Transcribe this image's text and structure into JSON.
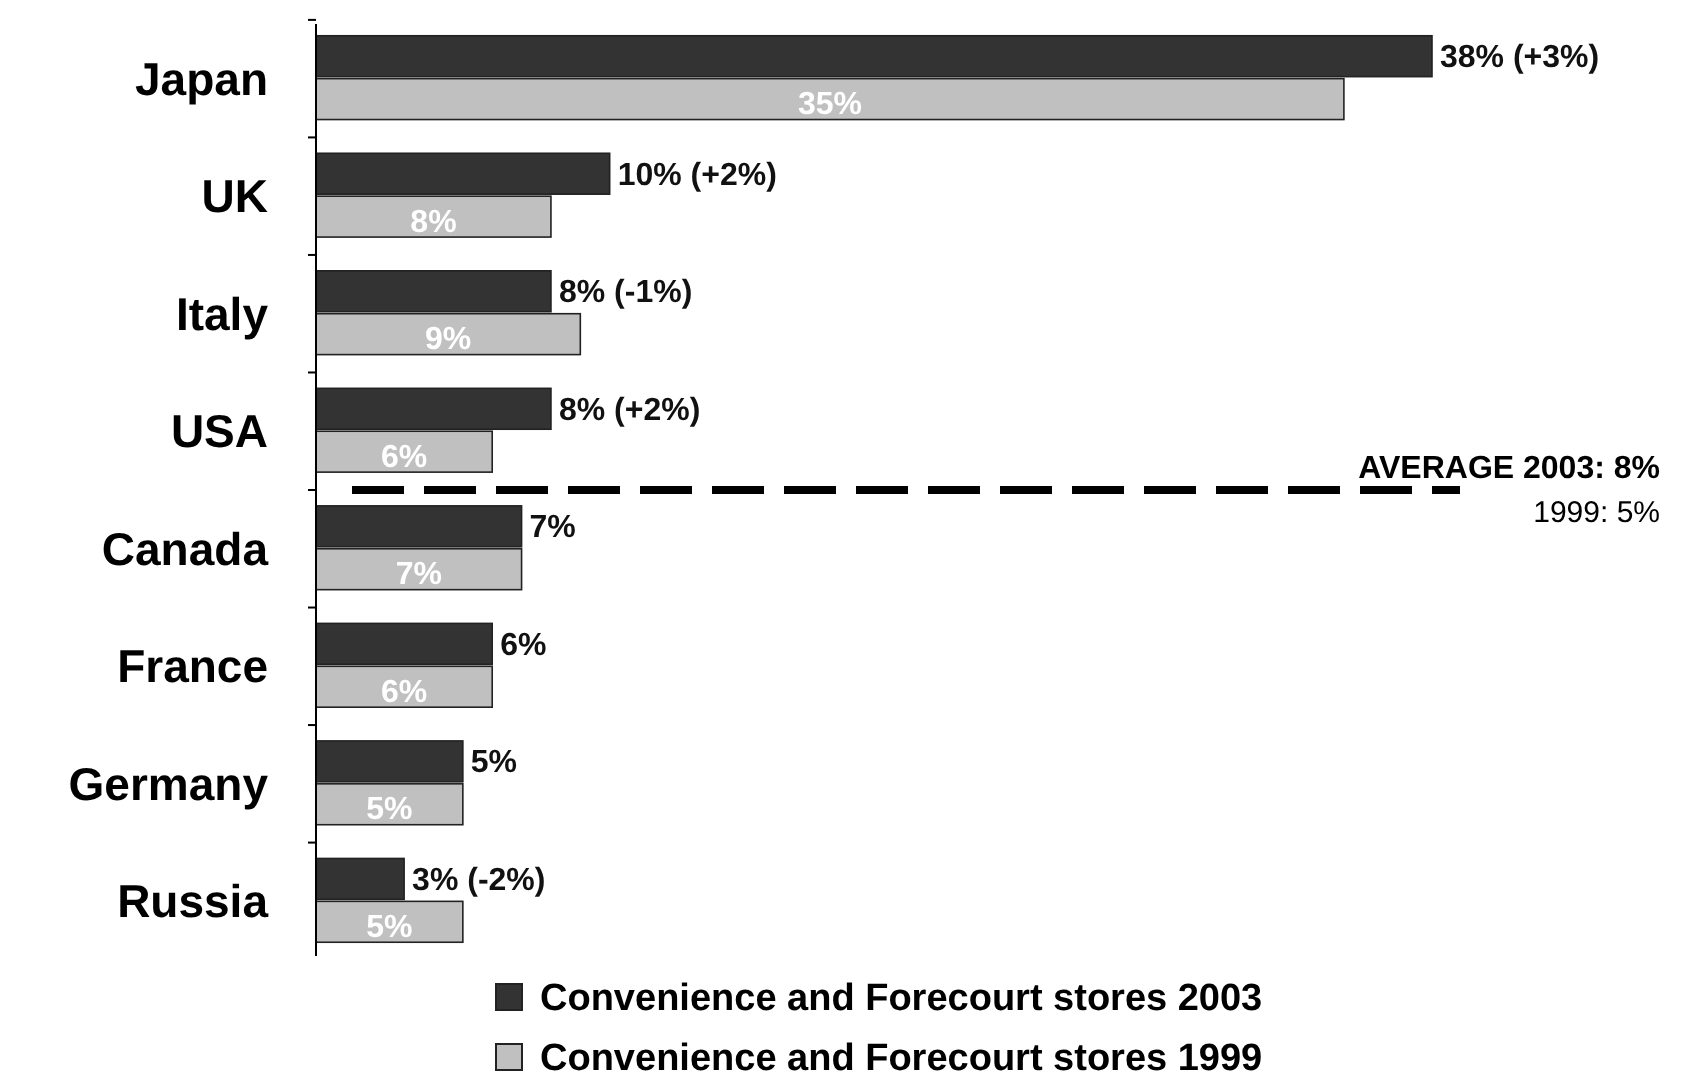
{
  "chart_data": {
    "type": "bar",
    "orientation": "horizontal",
    "categories": [
      "Japan",
      "UK",
      "Italy",
      "USA",
      "Canada",
      "France",
      "Germany",
      "Russia"
    ],
    "series": [
      {
        "name": "Convenience and Forecourt stores 2003",
        "color": "#333333",
        "values": [
          38,
          10,
          8,
          8,
          7,
          6,
          5,
          3
        ],
        "value_labels": [
          "38% (+3%)",
          "10% (+2%)",
          "8% (-1%)",
          "8% (+2%)",
          "7%",
          "6%",
          "5%",
          "3% (-2%)"
        ]
      },
      {
        "name": "Convenience and Forecourt stores 1999",
        "color": "#c0c0c0",
        "values": [
          35,
          8,
          9,
          6,
          7,
          6,
          5,
          5
        ],
        "value_labels": [
          "35%",
          "8%",
          "9%",
          "6%",
          "7%",
          "6%",
          "5%",
          "5%"
        ]
      }
    ],
    "annotations": [
      "AVERAGE 2003: 8%",
      "1999: 5%"
    ],
    "legend": "bottom"
  }
}
